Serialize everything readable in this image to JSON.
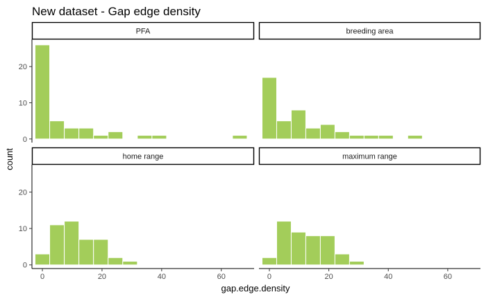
{
  "chart_data": {
    "type": "bar",
    "title": "New dataset - Gap edge density",
    "xlabel": "gap.edge.density",
    "ylabel": "count",
    "x_ticks": [
      0,
      20,
      40,
      60
    ],
    "y_ticks": [
      0,
      10,
      20
    ],
    "xlim": [
      -3.5,
      71
    ],
    "ylim": [
      -1,
      27.5
    ],
    "bin_width": 4.9,
    "bar_color": "#a3cd5a",
    "grid": false,
    "facets": [
      {
        "label": "PFA",
        "bins": [
          {
            "x": 0,
            "count": 26
          },
          {
            "x": 4.9,
            "count": 5
          },
          {
            "x": 9.8,
            "count": 3
          },
          {
            "x": 14.7,
            "count": 3
          },
          {
            "x": 19.6,
            "count": 1
          },
          {
            "x": 24.5,
            "count": 2
          },
          {
            "x": 34.3,
            "count": 1
          },
          {
            "x": 39.2,
            "count": 1
          },
          {
            "x": 66.2,
            "count": 1
          }
        ]
      },
      {
        "label": "breeding area",
        "bins": [
          {
            "x": 0,
            "count": 17
          },
          {
            "x": 4.9,
            "count": 5
          },
          {
            "x": 9.8,
            "count": 8
          },
          {
            "x": 14.7,
            "count": 3
          },
          {
            "x": 19.6,
            "count": 4
          },
          {
            "x": 24.5,
            "count": 2
          },
          {
            "x": 29.4,
            "count": 1
          },
          {
            "x": 34.3,
            "count": 1
          },
          {
            "x": 39.2,
            "count": 1
          },
          {
            "x": 44.1,
            "count": 0
          },
          {
            "x": 49,
            "count": 1
          }
        ]
      },
      {
        "label": "home range",
        "bins": [
          {
            "x": 0,
            "count": 3
          },
          {
            "x": 4.9,
            "count": 11
          },
          {
            "x": 9.8,
            "count": 12
          },
          {
            "x": 14.7,
            "count": 7
          },
          {
            "x": 19.6,
            "count": 7
          },
          {
            "x": 24.5,
            "count": 2
          },
          {
            "x": 29.4,
            "count": 1
          }
        ]
      },
      {
        "label": "maximum range",
        "bins": [
          {
            "x": 0,
            "count": 2
          },
          {
            "x": 4.9,
            "count": 12
          },
          {
            "x": 9.8,
            "count": 9
          },
          {
            "x": 14.7,
            "count": 8
          },
          {
            "x": 19.6,
            "count": 8
          },
          {
            "x": 24.5,
            "count": 3
          },
          {
            "x": 29.4,
            "count": 1
          }
        ]
      }
    ]
  }
}
